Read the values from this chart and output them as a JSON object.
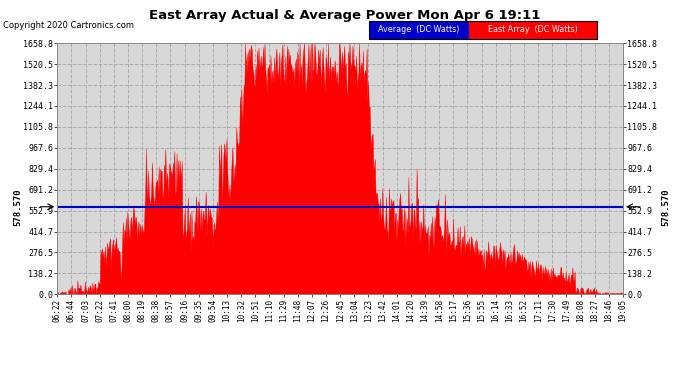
{
  "title": "East Array Actual & Average Power Mon Apr 6 19:11",
  "copyright": "Copyright 2020 Cartronics.com",
  "ylabel_side": "578.570",
  "average_value": 578.57,
  "y_max": 1658.8,
  "y_ticks": [
    0.0,
    138.2,
    276.5,
    414.7,
    552.9,
    691.2,
    829.4,
    967.6,
    1105.8,
    1244.1,
    1382.3,
    1520.5,
    1658.8
  ],
  "bg_color": "#ffffff",
  "plot_bg_color": "#d8d8d8",
  "grid_color": "#aaaaaa",
  "fill_color": "#ff0000",
  "avg_line_color": "#0000cd",
  "legend_avg_color": "#0000cd",
  "legend_ea_color": "#ff0000",
  "x_tick_labels": [
    "06:22",
    "06:44",
    "07:03",
    "07:22",
    "07:41",
    "08:00",
    "08:19",
    "08:38",
    "08:57",
    "09:16",
    "09:35",
    "09:54",
    "10:13",
    "10:32",
    "10:51",
    "11:10",
    "11:29",
    "11:48",
    "12:07",
    "12:26",
    "12:45",
    "13:04",
    "13:23",
    "13:42",
    "14:01",
    "14:20",
    "14:39",
    "14:58",
    "15:17",
    "15:36",
    "15:55",
    "16:14",
    "16:33",
    "16:52",
    "17:11",
    "17:30",
    "17:49",
    "18:08",
    "18:27",
    "18:46",
    "19:05"
  ]
}
